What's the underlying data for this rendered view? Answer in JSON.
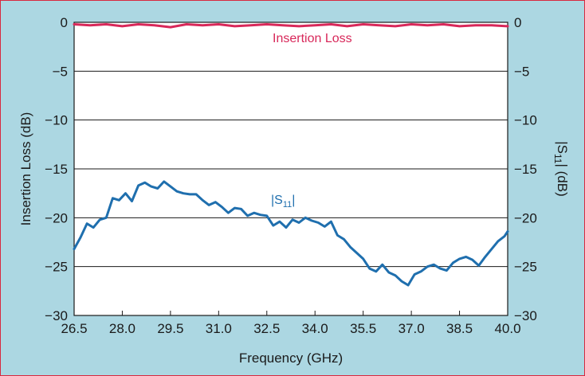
{
  "chart_data": {
    "type": "line",
    "title": "",
    "xlabel": "Frequency (GHz)",
    "ylabel_left": "Insertion Loss (dB)",
    "ylabel_right_prefix": "|S",
    "ylabel_right_sub": "11",
    "ylabel_right_suffix": "| (dB)",
    "xlim": [
      26.5,
      40.0
    ],
    "ylim": [
      -30,
      0
    ],
    "x_ticks": [
      "26.5",
      "28.0",
      "29.5",
      "31.0",
      "32.5",
      "34.0",
      "35.5",
      "37.0",
      "38.5",
      "40.0"
    ],
    "y_ticks": [
      "0",
      "−5",
      "−10",
      "−15",
      "−20",
      "−25",
      "−30"
    ],
    "grid": "horizontal",
    "colors": {
      "background": "#acd7e2",
      "border": "#d8283f",
      "insertion_loss": "#d8285a",
      "s11": "#1f6fae",
      "plot_area": "#ffffff"
    },
    "series": [
      {
        "name": "Insertion Loss",
        "label_text": "Insertion Loss",
        "x": [
          26.5,
          27.0,
          27.5,
          28.0,
          28.5,
          29.0,
          29.5,
          30.0,
          30.5,
          31.0,
          31.5,
          32.0,
          32.5,
          33.0,
          33.5,
          34.0,
          34.5,
          35.0,
          35.5,
          36.0,
          36.5,
          37.0,
          37.5,
          38.0,
          38.5,
          39.0,
          39.5,
          40.0
        ],
        "y": [
          -0.2,
          -0.3,
          -0.2,
          -0.4,
          -0.2,
          -0.3,
          -0.5,
          -0.2,
          -0.3,
          -0.2,
          -0.4,
          -0.3,
          -0.2,
          -0.3,
          -0.4,
          -0.3,
          -0.2,
          -0.4,
          -0.2,
          -0.3,
          -0.4,
          -0.2,
          -0.3,
          -0.2,
          -0.4,
          -0.3,
          -0.3,
          -0.4
        ]
      },
      {
        "name": "|S11|",
        "label_prefix": "|S",
        "label_sub": "11",
        "label_suffix": "|",
        "x": [
          26.5,
          26.7,
          26.9,
          27.1,
          27.3,
          27.5,
          27.7,
          27.9,
          28.1,
          28.3,
          28.5,
          28.7,
          28.9,
          29.1,
          29.3,
          29.5,
          29.7,
          29.9,
          30.1,
          30.3,
          30.5,
          30.7,
          30.9,
          31.1,
          31.3,
          31.5,
          31.7,
          31.9,
          32.1,
          32.3,
          32.5,
          32.7,
          32.9,
          33.1,
          33.3,
          33.5,
          33.7,
          33.9,
          34.1,
          34.3,
          34.5,
          34.7,
          34.9,
          35.1,
          35.3,
          35.5,
          35.7,
          35.9,
          36.1,
          36.3,
          36.5,
          36.7,
          36.9,
          37.1,
          37.3,
          37.5,
          37.7,
          37.9,
          38.1,
          38.3,
          38.5,
          38.7,
          38.9,
          39.1,
          39.3,
          39.5,
          39.7,
          39.9,
          40.0
        ],
        "y": [
          -23.2,
          -22.0,
          -20.6,
          -21.0,
          -20.2,
          -20.0,
          -18.0,
          -18.2,
          -17.5,
          -18.3,
          -16.7,
          -16.4,
          -16.8,
          -17.0,
          -16.3,
          -16.8,
          -17.3,
          -17.5,
          -17.6,
          -17.6,
          -18.2,
          -18.7,
          -18.4,
          -18.9,
          -19.5,
          -19.0,
          -19.1,
          -19.8,
          -19.5,
          -19.7,
          -19.8,
          -20.8,
          -20.4,
          -21.0,
          -20.2,
          -20.5,
          -20.0,
          -20.3,
          -20.5,
          -20.9,
          -20.4,
          -21.8,
          -22.2,
          -23.0,
          -23.6,
          -24.2,
          -25.2,
          -25.5,
          -24.8,
          -25.6,
          -25.9,
          -26.5,
          -26.9,
          -25.8,
          -25.5,
          -25.0,
          -24.8,
          -25.2,
          -25.4,
          -24.6,
          -24.2,
          -24.0,
          -24.3,
          -24.9,
          -24.0,
          -23.2,
          -22.4,
          -21.9,
          -21.4
        ]
      }
    ]
  }
}
